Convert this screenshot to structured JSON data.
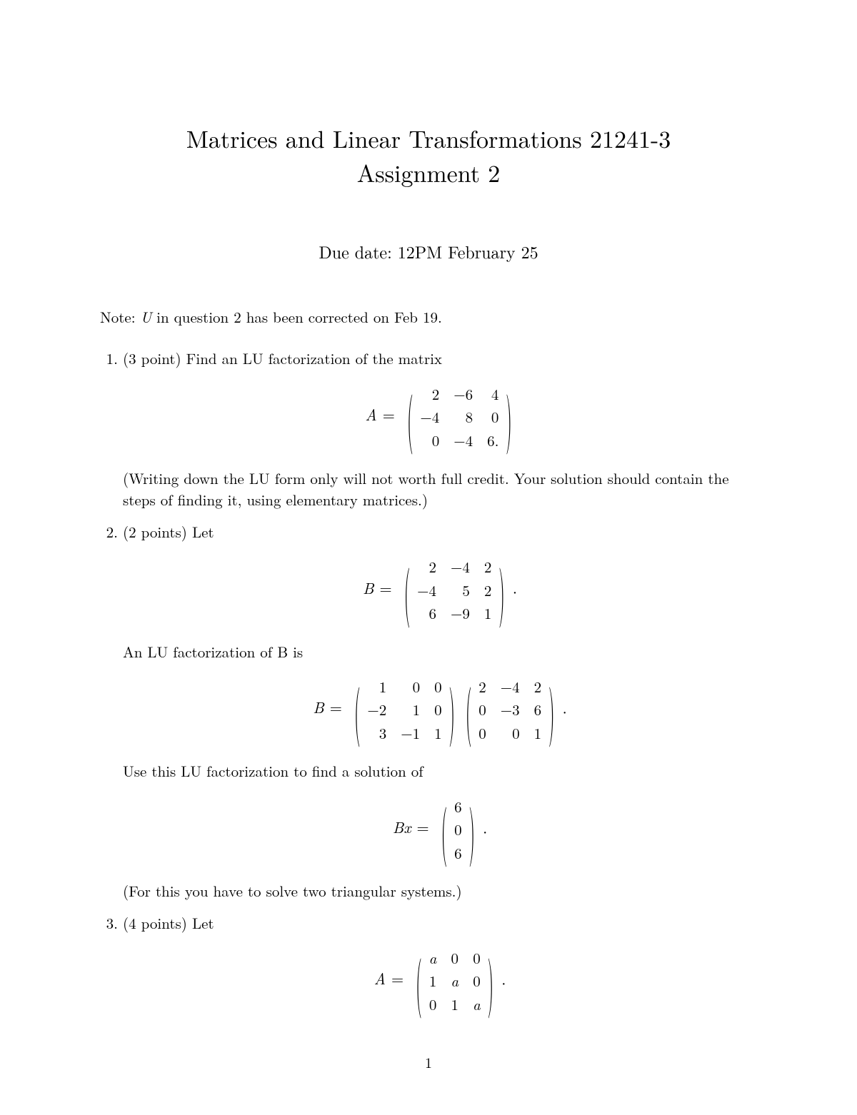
{
  "title_line1": "Matrices and Linear Transformations 21241-3",
  "title_line2": "Assignment 2",
  "due": "Due date: 12PM February 25",
  "note_pre": "Note: ",
  "note_var": "U",
  "note_post": " in question 2 has been corrected on Feb 19.",
  "q1": {
    "prompt": "(3 point) Find an LU factorization of the matrix",
    "label": "A",
    "rows": [
      [
        "2",
        "−6",
        "4"
      ],
      [
        "−4",
        "8",
        "0"
      ],
      [
        "0",
        "−4",
        "6."
      ]
    ],
    "paren": "(Writing down the LU form only will not worth full credit. Your solution should contain the steps of finding it, using elementary matrices.)"
  },
  "q2": {
    "prompt": "(2 points) Let",
    "label_B": "B",
    "B_rows": [
      [
        "2",
        "−4",
        "2"
      ],
      [
        "−4",
        "5",
        "2"
      ],
      [
        "6",
        "−9",
        "1"
      ]
    ],
    "mid1": "An LU factorization of ",
    "mid1_var": "B",
    "mid1_post": " is",
    "L_rows": [
      [
        "1",
        "0",
        "0"
      ],
      [
        "−2",
        "1",
        "0"
      ],
      [
        "3",
        "−1",
        "1"
      ]
    ],
    "U_rows": [
      [
        "2",
        "−4",
        "2"
      ],
      [
        "0",
        "−3",
        "6"
      ],
      [
        "0",
        "0",
        "1"
      ]
    ],
    "mid2": "Use this LU factorization to find a solution of",
    "sys_lhs": "Bx",
    "rhs_vec": [
      [
        "6"
      ],
      [
        "0"
      ],
      [
        "6"
      ]
    ],
    "paren": "(For this you have to solve two triangular systems.)"
  },
  "q3": {
    "prompt": "(4 points) Let",
    "label": "A",
    "rows": [
      [
        "a",
        "0",
        "0"
      ],
      [
        "1",
        "a",
        "0"
      ],
      [
        "0",
        "1",
        "a"
      ]
    ]
  },
  "pagenum": "1"
}
